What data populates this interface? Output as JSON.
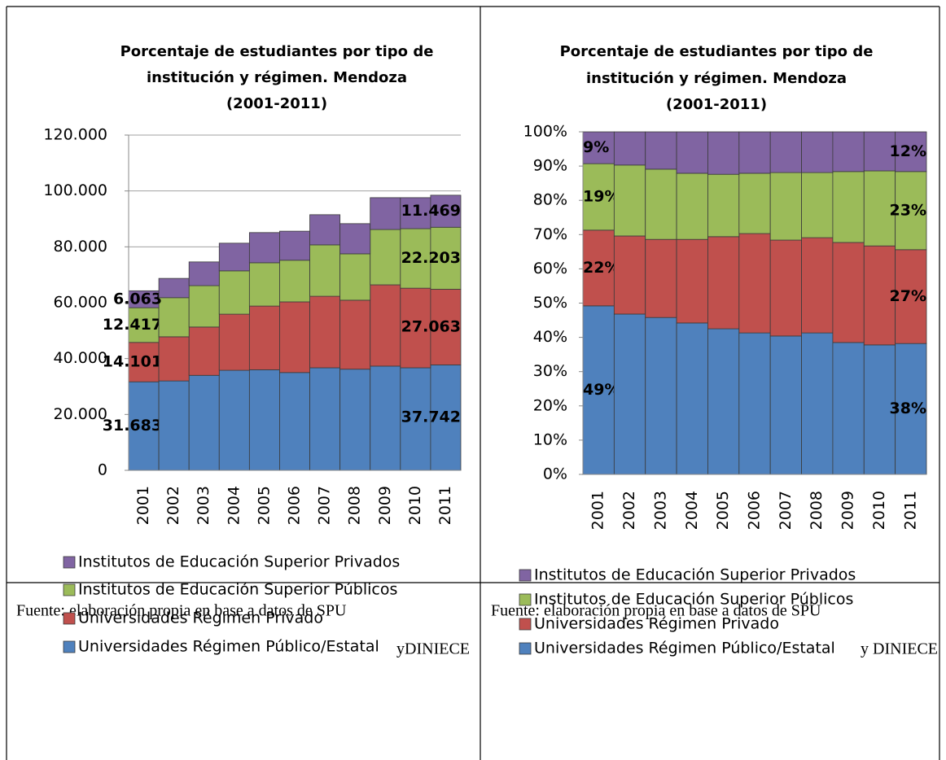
{
  "chart_data": [
    {
      "type": "bar",
      "stacked": true,
      "title": [
        "Porcentaje de estudiantes por tipo de",
        "institución y régimen. Mendoza",
        "(2001-2011)"
      ],
      "categories": [
        "2001",
        "2002",
        "2003",
        "2004",
        "2005",
        "2006",
        "2007",
        "2008",
        "2009",
        "2010",
        "2011"
      ],
      "series": [
        {
          "name": "Universidades Régimen Público/Estatal",
          "color": "#4f81bd",
          "values": [
            31683,
            32000,
            34000,
            35800,
            36000,
            35000,
            36700,
            36200,
            37300,
            36700,
            37742
          ],
          "value_labels": [
            "31.683",
            null,
            null,
            null,
            null,
            null,
            null,
            null,
            null,
            null,
            "37.742"
          ]
        },
        {
          "name": "Universidades Régimen Privado",
          "color": "#c0504d",
          "values": [
            14101,
            15800,
            17300,
            20100,
            22800,
            25300,
            25600,
            24700,
            29100,
            28500,
            27063
          ],
          "value_labels": [
            "14.101",
            null,
            null,
            null,
            null,
            null,
            null,
            null,
            null,
            null,
            "27.063"
          ]
        },
        {
          "name": "Institutos de Educación Superior Públicos",
          "color": "#9bbb59",
          "values": [
            12417,
            14000,
            14800,
            15500,
            15500,
            14900,
            18400,
            16600,
            19800,
            21300,
            22203
          ],
          "value_labels": [
            "12.417",
            null,
            null,
            null,
            null,
            null,
            null,
            null,
            null,
            null,
            "22.203"
          ]
        },
        {
          "name": "Institutos de Educación Superior Privados",
          "color": "#8064a2",
          "values": [
            6063,
            6900,
            8500,
            9900,
            10800,
            10400,
            10800,
            10800,
            11400,
            11100,
            11469
          ],
          "value_labels": [
            "6.063",
            null,
            null,
            null,
            null,
            null,
            null,
            null,
            null,
            null,
            "11.469"
          ]
        }
      ],
      "ylim": [
        0,
        120000
      ],
      "yticks": [
        0,
        {
          "value": 20000,
          "label": "20.000"
        },
        {
          "value": 40000,
          "label": "40.000"
        },
        {
          "value": 60000,
          "label": "60.000"
        },
        {
          "value": 80000,
          "label": "80.000"
        },
        {
          "value": 100000,
          "label": "100.000"
        },
        {
          "value": 120000,
          "label": "120.000"
        }
      ],
      "grid": true
    },
    {
      "type": "bar",
      "stacked": true,
      "title": [
        "Porcentaje de estudiantes por tipo de",
        "institución y régimen. Mendoza",
        "(2001-2011)"
      ],
      "categories": [
        "2001",
        "2002",
        "2003",
        "2004",
        "2005",
        "2006",
        "2007",
        "2008",
        "2009",
        "2010",
        "2011"
      ],
      "series": [
        {
          "name": "Universidades Régimen Público/Estatal",
          "color": "#4f81bd",
          "values": [
            49.2,
            46.8,
            45.8,
            44.2,
            42.5,
            41.3,
            40.4,
            41.3,
            38.5,
            37.8,
            38.2
          ],
          "value_labels": [
            "49%",
            null,
            null,
            null,
            null,
            null,
            null,
            null,
            null,
            null,
            "38%"
          ]
        },
        {
          "name": "Universidades Régimen Privado",
          "color": "#c0504d",
          "values": [
            22.1,
            22.8,
            22.8,
            24.4,
            26.9,
            29.0,
            28.0,
            27.8,
            29.2,
            28.9,
            27.4
          ],
          "value_labels": [
            "22%",
            null,
            null,
            null,
            null,
            null,
            null,
            null,
            null,
            null,
            "27%"
          ]
        },
        {
          "name": "Institutos de Educación Superior Públicos",
          "color": "#9bbb59",
          "values": [
            19.4,
            20.7,
            20.5,
            19.3,
            18.2,
            17.6,
            19.7,
            19.0,
            20.7,
            21.9,
            22.8
          ],
          "value_labels": [
            "19%",
            null,
            null,
            null,
            null,
            null,
            null,
            null,
            null,
            null,
            "23%"
          ]
        },
        {
          "name": "Institutos de Educación Superior Privados",
          "color": "#8064a2",
          "values": [
            9.3,
            9.7,
            10.9,
            12.1,
            12.4,
            12.1,
            11.9,
            11.9,
            11.6,
            11.4,
            11.6
          ],
          "value_labels": [
            "9%",
            null,
            null,
            null,
            null,
            null,
            null,
            null,
            null,
            null,
            "12%"
          ]
        }
      ],
      "ylim": [
        0,
        100
      ],
      "yticks": [
        {
          "value": 0,
          "label": "0%"
        },
        {
          "value": 10,
          "label": "10%"
        },
        {
          "value": 20,
          "label": "20%"
        },
        {
          "value": 30,
          "label": "30%"
        },
        {
          "value": 40,
          "label": "40%"
        },
        {
          "value": 50,
          "label": "50%"
        },
        {
          "value": 60,
          "label": "60%"
        },
        {
          "value": 70,
          "label": "70%"
        },
        {
          "value": 80,
          "label": "80%"
        },
        {
          "value": 90,
          "label": "90%"
        },
        {
          "value": 100,
          "label": "100%"
        }
      ],
      "grid": false
    }
  ],
  "footnotes": [
    [
      "Fuente: elaboración propia en base a datos de SPU",
      "yDINIECE"
    ],
    [
      "Fuente: elaboración propia en base a datos de SPU",
      "y DINIECE"
    ]
  ]
}
